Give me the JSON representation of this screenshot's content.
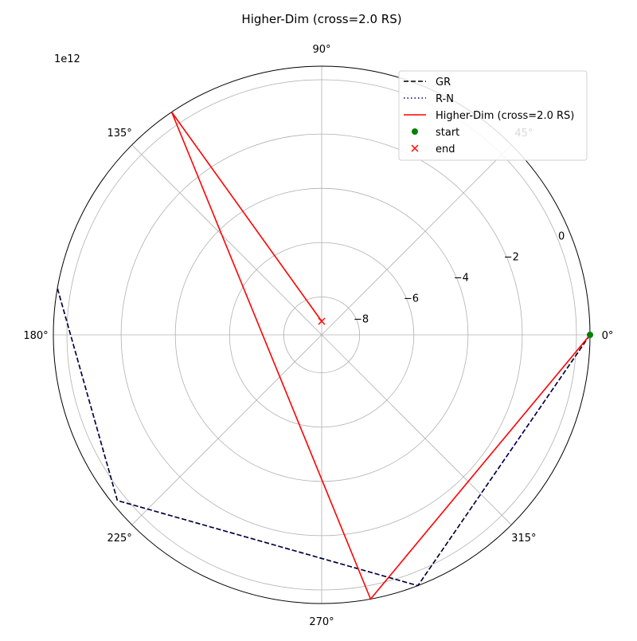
{
  "chart_data": {
    "type": "polar-line",
    "title": "Higher-Dim (cross=2.0 RS)",
    "offset_text": "1e12",
    "theta_ticks": [
      "0°",
      "45°",
      "90°",
      "135°",
      "180°",
      "225°",
      "270°",
      "315°"
    ],
    "theta_tick_degrees": [
      0,
      45,
      90,
      135,
      180,
      225,
      270,
      315
    ],
    "r_ticks": [
      -8,
      -6,
      -4,
      -2,
      0
    ],
    "r_tick_labels": [
      "−8",
      "−6",
      "−4",
      "−2",
      "0"
    ],
    "r_lim": [
      -9.4,
      0.5
    ],
    "r_label_angle_deg": 22.5,
    "grid": true,
    "legend_position": "top-right",
    "series": [
      {
        "name": "GR",
        "color": "#000000",
        "style": "dashed",
        "points": [
          {
            "theta_deg": 0,
            "r": 0.5
          },
          {
            "theta_deg": 291,
            "r": 0.5
          },
          {
            "theta_deg": 219,
            "r": 0.3
          },
          {
            "theta_deg": 170,
            "r": 0.5
          }
        ]
      },
      {
        "name": "R-N",
        "color": "#00008b",
        "style": "dotted",
        "points": [
          {
            "theta_deg": 0,
            "r": 0.5
          },
          {
            "theta_deg": 291,
            "r": 0.5
          },
          {
            "theta_deg": 219,
            "r": 0.3
          },
          {
            "theta_deg": 170,
            "r": 0.5
          }
        ]
      },
      {
        "name": "Higher-Dim (cross=2.0 RS)",
        "color": "#ff0000",
        "style": "solid",
        "points": [
          {
            "theta_deg": 0,
            "r": 0.5
          },
          {
            "theta_deg": 280.5,
            "r": 0.5
          },
          {
            "theta_deg": 124,
            "r": 0.5
          },
          {
            "theta_deg": 90,
            "r": -8.9
          }
        ]
      },
      {
        "name": "start",
        "color": "#008000",
        "marker": "circle",
        "points": [
          {
            "theta_deg": 0,
            "r": 0.5
          }
        ]
      },
      {
        "name": "end",
        "color": "#ff0000",
        "marker": "x",
        "points": [
          {
            "theta_deg": 90,
            "r": -8.9
          }
        ]
      }
    ]
  }
}
